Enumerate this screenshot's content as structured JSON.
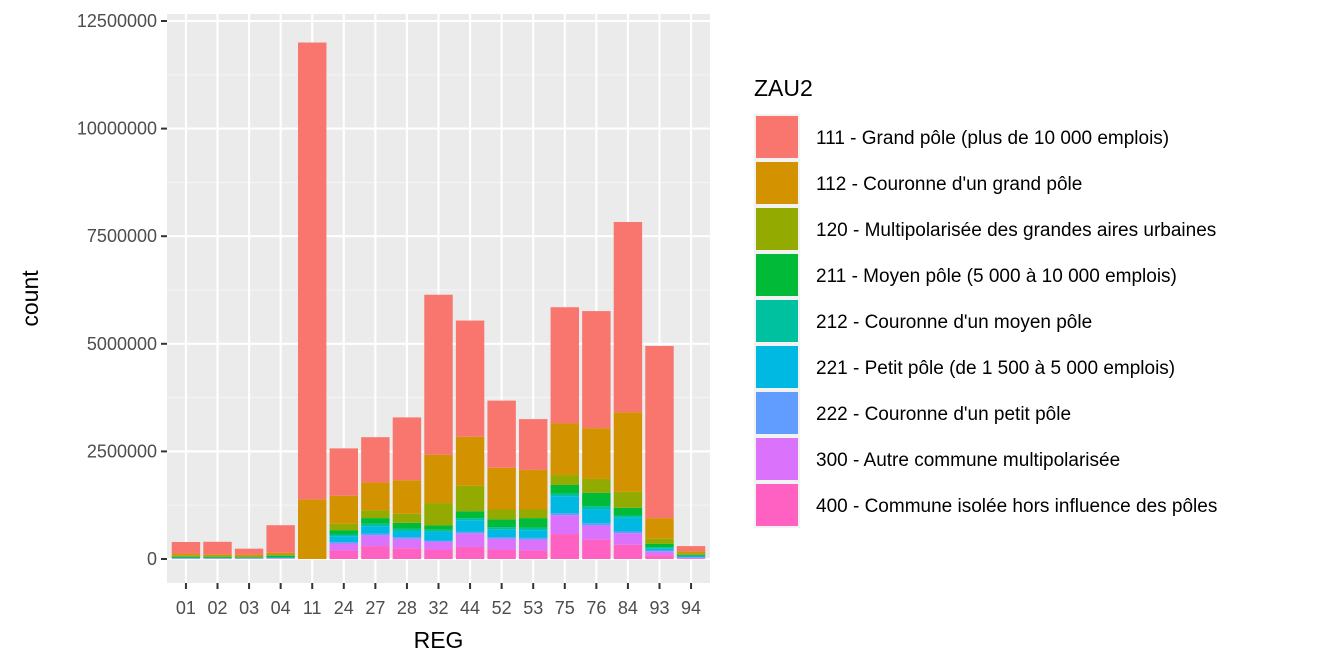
{
  "chart_data": {
    "type": "bar",
    "stacked": true,
    "xlabel": "REG",
    "ylabel": "count",
    "ylim": [
      0,
      12500000
    ],
    "yticks": [
      0,
      2500000,
      5000000,
      7500000,
      10000000,
      12500000
    ],
    "ytick_labels": [
      "0",
      "2500000",
      "5000000",
      "7500000",
      "10000000",
      "12500000"
    ],
    "grid": true,
    "legend": {
      "title": "ZAU2",
      "placement": "right"
    },
    "categories": [
      "01",
      "02",
      "03",
      "04",
      "11",
      "24",
      "27",
      "28",
      "32",
      "44",
      "52",
      "53",
      "75",
      "76",
      "84",
      "93",
      "94"
    ],
    "series": [
      {
        "name": "111 - Grand pôle (plus de 10 000 emplois)",
        "color": "#F8766D",
        "values": [
          270000,
          290000,
          140000,
          640000,
          10620000,
          1100000,
          1050000,
          1460000,
          3720000,
          2700000,
          1560000,
          1180000,
          2700000,
          2720000,
          4420000,
          4000000,
          120000
        ]
      },
      {
        "name": "112 - Couronne d'un grand pôle",
        "color": "#D39200",
        "values": [
          50000,
          40000,
          40000,
          40000,
          1380000,
          650000,
          650000,
          780000,
          1120000,
          1140000,
          970000,
          920000,
          1200000,
          1180000,
          1850000,
          480000,
          50000
        ]
      },
      {
        "name": "120 - Multipolarisée des grandes aires urbaines",
        "color": "#93AA00",
        "values": [
          20000,
          20000,
          15000,
          30000,
          0,
          150000,
          180000,
          210000,
          520000,
          590000,
          230000,
          200000,
          230000,
          320000,
          370000,
          120000,
          30000
        ]
      },
      {
        "name": "211 - Moyen pôle (5 000 à 10 000 emplois)",
        "color": "#00BA38",
        "values": [
          20000,
          15000,
          15000,
          30000,
          0,
          100000,
          130000,
          140000,
          100000,
          160000,
          180000,
          220000,
          200000,
          310000,
          180000,
          80000,
          20000
        ]
      },
      {
        "name": "212 - Couronne d'un moyen pôle",
        "color": "#00C19F",
        "values": [
          10000,
          10000,
          5000,
          10000,
          0,
          40000,
          60000,
          50000,
          50000,
          50000,
          60000,
          60000,
          60000,
          70000,
          50000,
          20000,
          10000
        ]
      },
      {
        "name": "221 - Petit pôle (de 1 500 à 5 000 emplois)",
        "color": "#00B9E3",
        "values": [
          10000,
          10000,
          10000,
          15000,
          0,
          140000,
          170000,
          140000,
          200000,
          270000,
          170000,
          180000,
          400000,
          330000,
          320000,
          60000,
          30000
        ]
      },
      {
        "name": "222 - Couronne d'un petit pôle",
        "color": "#619CFF",
        "values": [
          5000,
          5000,
          5000,
          5000,
          0,
          30000,
          40000,
          40000,
          30000,
          30000,
          40000,
          40000,
          40000,
          50000,
          40000,
          10000,
          5000
        ]
      },
      {
        "name": "300 - Autre commune multipolarisée",
        "color": "#DB72FB",
        "values": [
          5000,
          5000,
          5000,
          10000,
          0,
          160000,
          250000,
          220000,
          180000,
          320000,
          250000,
          250000,
          440000,
          330000,
          270000,
          90000,
          20000
        ]
      },
      {
        "name": "400 - Commune isolée hors influence des pôles",
        "color": "#FF61C3",
        "values": [
          5000,
          5000,
          5000,
          5000,
          0,
          200000,
          300000,
          250000,
          220000,
          280000,
          220000,
          200000,
          580000,
          450000,
          330000,
          90000,
          15000
        ]
      }
    ]
  }
}
